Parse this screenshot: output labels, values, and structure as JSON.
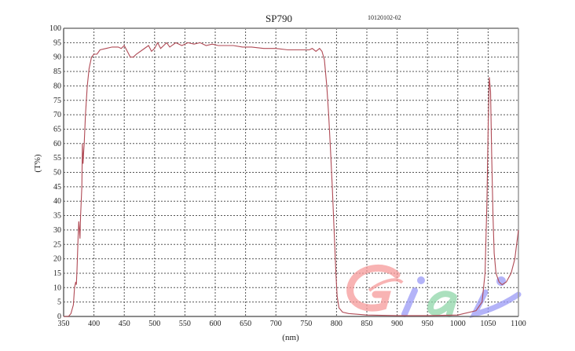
{
  "chart_data": {
    "type": "line",
    "title": "SP790",
    "annotation": "10120102-02",
    "xlabel": "(nm)",
    "ylabel": "(T%)",
    "xlim": [
      350,
      1100
    ],
    "ylim": [
      0,
      100
    ],
    "xticks": [
      350,
      400,
      450,
      500,
      550,
      600,
      650,
      700,
      750,
      800,
      850,
      900,
      950,
      1000,
      1050,
      1100
    ],
    "yticks": [
      0,
      5,
      10,
      15,
      20,
      25,
      30,
      35,
      40,
      45,
      50,
      55,
      60,
      65,
      70,
      75,
      80,
      85,
      90,
      95,
      100
    ],
    "grid": true,
    "line_color": "#b04a55",
    "series": [
      {
        "x": [
          350,
          358,
          362,
          366,
          368,
          370,
          371,
          372,
          374,
          375,
          376,
          377,
          378,
          380,
          381,
          382,
          383,
          384,
          386,
          389,
          392,
          396,
          400,
          405,
          410,
          420,
          430,
          440,
          445,
          450,
          455,
          460,
          465,
          470,
          480,
          490,
          495,
          500,
          505,
          510,
          515,
          520,
          525,
          535,
          545,
          555,
          565,
          575,
          585,
          595,
          605,
          615,
          630,
          645,
          660,
          680,
          700,
          720,
          740,
          755,
          760,
          766,
          772,
          776,
          780,
          784,
          787,
          790,
          793,
          796,
          799,
          801,
          804,
          810,
          820,
          850,
          900,
          950,
          1000,
          1030,
          1040,
          1045,
          1048,
          1050,
          1052,
          1054,
          1056,
          1058,
          1060,
          1063,
          1068,
          1073,
          1080,
          1088,
          1094,
          1100
        ],
        "y": [
          0,
          0,
          1,
          4,
          10,
          12,
          11,
          16,
          28,
          33,
          30,
          27,
          35,
          45,
          60,
          53,
          57,
          60,
          70,
          80,
          86,
          90,
          91,
          91,
          92.5,
          93,
          93.5,
          93.5,
          93,
          94,
          92,
          90,
          90,
          91,
          92.5,
          94,
          92,
          93,
          95,
          93,
          94,
          95,
          93.5,
          95,
          94,
          95,
          94.5,
          95,
          94,
          94.5,
          94,
          94,
          94,
          93.5,
          93.5,
          93,
          93,
          92.5,
          92.5,
          92.5,
          93,
          92,
          93,
          92,
          89,
          80,
          70,
          58,
          45,
          30,
          15,
          7,
          3,
          1.5,
          1,
          0.5,
          0.3,
          0.3,
          0.5,
          2,
          5,
          15,
          40,
          65,
          83,
          78,
          55,
          35,
          22,
          15,
          12,
          11,
          12,
          15,
          20,
          30
        ]
      }
    ]
  },
  "watermark": {
    "text": "Giai",
    "colors": [
      "#f59a9a",
      "#9a9af5",
      "#8fd6a8",
      "#9a9af5"
    ]
  }
}
